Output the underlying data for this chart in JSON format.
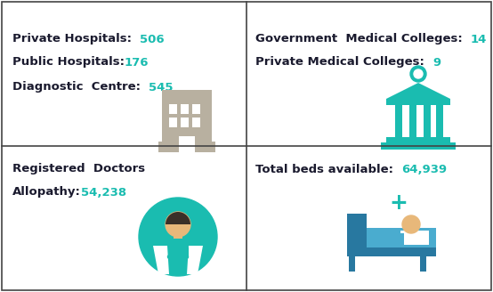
{
  "bg_color": "#ffffff",
  "teal": "#1abcb0",
  "dark": "#1a1a2e",
  "gray_icon": "#b8b0a0",
  "blue_icon": "#2a7da0",
  "light_blue_icon": "#4ab8d8",
  "border_color": "#444444",
  "cells": [
    {
      "id": "top_left",
      "text_lines": [
        {
          "label": "Private Hospitals:  ",
          "value": "506"
        },
        {
          "label": "Public Hospitals:",
          "value": "176"
        },
        {
          "label": "Diagnostic  Centre:  ",
          "value": "545"
        }
      ]
    },
    {
      "id": "top_right",
      "text_lines": [
        {
          "label": "Government  Medical Colleges:  ",
          "value": "14"
        },
        {
          "label": "Private Medical Colleges:  ",
          "value": "9"
        }
      ]
    },
    {
      "id": "bottom_left",
      "text_lines": [
        {
          "label": "Registered  Doctors",
          "value": ""
        },
        {
          "label": "Allopathy:",
          "value": "54,238"
        }
      ]
    },
    {
      "id": "bottom_right",
      "text_lines": [
        {
          "label": "Total beds available:  ",
          "value": "64,939"
        }
      ]
    }
  ]
}
